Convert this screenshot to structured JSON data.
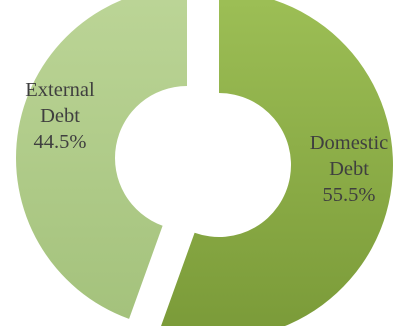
{
  "chart_data": {
    "type": "pie",
    "variant": "donut",
    "title": "",
    "legend": "none",
    "slices": [
      {
        "name": "Domestic",
        "label_lines": [
          "Domestic",
          "Debt",
          "55.5%"
        ],
        "value": 55.5,
        "color": "#8fb04c"
      },
      {
        "name": "External",
        "label_lines": [
          "External",
          "Debt",
          "44.5%"
        ],
        "value": 44.5,
        "color": "#b2cf85"
      }
    ]
  }
}
